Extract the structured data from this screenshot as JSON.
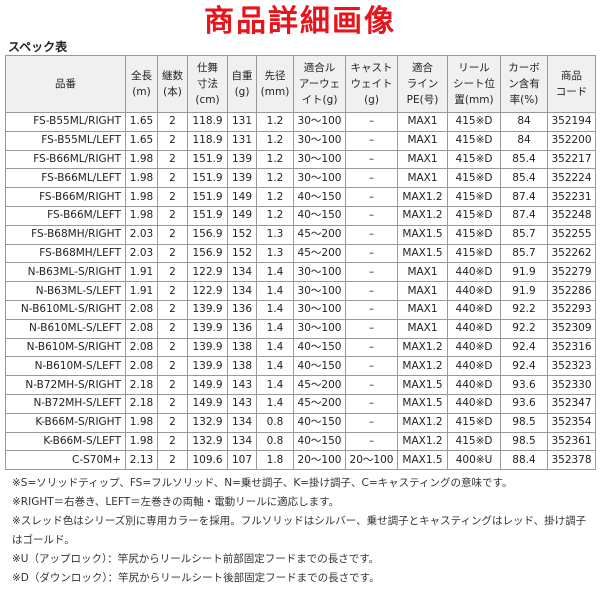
{
  "header": {
    "title": "商品詳細画像",
    "subtitle": "スペック表"
  },
  "table": {
    "columns": [
      [
        "品番"
      ],
      [
        "全長",
        "(m)"
      ],
      [
        "継数",
        "(本)"
      ],
      [
        "仕舞",
        "寸法",
        "(cm)"
      ],
      [
        "自重",
        "(g)"
      ],
      [
        "先径",
        "(mm)"
      ],
      [
        "適合ル",
        "アーウェ",
        "イト(g)"
      ],
      [
        "キャスト",
        "ウェイト",
        "(g)"
      ],
      [
        "適合",
        "ライン",
        "PE(号)"
      ],
      [
        "リール",
        "シート位",
        "置(mm)"
      ],
      [
        "カーボ",
        "ン含有",
        "率(%)"
      ],
      [
        "商品",
        "コード"
      ]
    ],
    "rows": [
      [
        "FS-B55ML/RIGHT",
        "1.65",
        "2",
        "118.9",
        "131",
        "1.2",
        "30～100",
        "–",
        "MAX1",
        "415※D",
        "84",
        "352194"
      ],
      [
        "FS-B55ML/LEFT",
        "1.65",
        "2",
        "118.9",
        "131",
        "1.2",
        "30～100",
        "–",
        "MAX1",
        "415※D",
        "84",
        "352200"
      ],
      [
        "FS-B66ML/RIGHT",
        "1.98",
        "2",
        "151.9",
        "139",
        "1.2",
        "30～100",
        "–",
        "MAX1",
        "415※D",
        "85.4",
        "352217"
      ],
      [
        "FS-B66ML/LEFT",
        "1.98",
        "2",
        "151.9",
        "139",
        "1.2",
        "30～100",
        "–",
        "MAX1",
        "415※D",
        "85.4",
        "352224"
      ],
      [
        "FS-B66M/RIGHT",
        "1.98",
        "2",
        "151.9",
        "149",
        "1.2",
        "40～150",
        "–",
        "MAX1.2",
        "415※D",
        "87.4",
        "352231"
      ],
      [
        "FS-B66M/LEFT",
        "1.98",
        "2",
        "151.9",
        "149",
        "1.2",
        "40～150",
        "–",
        "MAX1.2",
        "415※D",
        "87.4",
        "352248"
      ],
      [
        "FS-B68MH/RIGHT",
        "2.03",
        "2",
        "156.9",
        "152",
        "1.3",
        "45～200",
        "–",
        "MAX1.5",
        "415※D",
        "85.7",
        "352255"
      ],
      [
        "FS-B68MH/LEFT",
        "2.03",
        "2",
        "156.9",
        "152",
        "1.3",
        "45～200",
        "–",
        "MAX1.5",
        "415※D",
        "85.7",
        "352262"
      ],
      [
        "N-B63ML-S/RIGHT",
        "1.91",
        "2",
        "122.9",
        "134",
        "1.4",
        "30～100",
        "–",
        "MAX1",
        "440※D",
        "91.9",
        "352279"
      ],
      [
        "N-B63ML-S/LEFT",
        "1.91",
        "2",
        "122.9",
        "134",
        "1.4",
        "30～100",
        "–",
        "MAX1",
        "440※D",
        "91.9",
        "352286"
      ],
      [
        "N-B610ML-S/RIGHT",
        "2.08",
        "2",
        "139.9",
        "136",
        "1.4",
        "30～100",
        "–",
        "MAX1",
        "440※D",
        "92.2",
        "352293"
      ],
      [
        "N-B610ML-S/LEFT",
        "2.08",
        "2",
        "139.9",
        "136",
        "1.4",
        "30～100",
        "–",
        "MAX1",
        "440※D",
        "92.2",
        "352309"
      ],
      [
        "N-B610M-S/RIGHT",
        "2.08",
        "2",
        "139.9",
        "138",
        "1.4",
        "40～150",
        "–",
        "MAX1.2",
        "440※D",
        "92.4",
        "352316"
      ],
      [
        "N-B610M-S/LEFT",
        "2.08",
        "2",
        "139.9",
        "138",
        "1.4",
        "40～150",
        "–",
        "MAX1.2",
        "440※D",
        "92.4",
        "352323"
      ],
      [
        "N-B72MH-S/RIGHT",
        "2.18",
        "2",
        "149.9",
        "143",
        "1.4",
        "45～200",
        "–",
        "MAX1.5",
        "440※D",
        "93.6",
        "352330"
      ],
      [
        "N-B72MH-S/LEFT",
        "2.18",
        "2",
        "149.9",
        "143",
        "1.4",
        "45～200",
        "–",
        "MAX1.5",
        "440※D",
        "93.6",
        "352347"
      ],
      [
        "K-B66M-S/RIGHT",
        "1.98",
        "2",
        "132.9",
        "134",
        "0.8",
        "40～150",
        "–",
        "MAX1.2",
        "415※D",
        "98.5",
        "352354"
      ],
      [
        "K-B66M-S/LEFT",
        "1.98",
        "2",
        "132.9",
        "134",
        "0.8",
        "40～150",
        "–",
        "MAX1.2",
        "415※D",
        "98.5",
        "352361"
      ],
      [
        "C-S70M+",
        "2.13",
        "2",
        "109.6",
        "107",
        "1.8",
        "20～100",
        "20～100",
        "MAX1.5",
        "400※U",
        "88.4",
        "352378"
      ]
    ]
  },
  "notes": [
    "※S=ソリッドティップ、FS=フルソリッド、N=乗せ調子、K=掛け調子、C=キャスティングの意味です。",
    "※RIGHT＝右巻き、LEFT＝左巻きの両軸・電動リールに適応します。",
    "※スレッド色はシリーズ別に専用カラーを採用。フルソリッドはシルバー、乗せ調子とキャスティングはレッド、掛け調子はゴールド。",
    "※U（アップロック）：竿尻からリールシート前部固定フードまでの長さです。",
    "※D（ダウンロック）：竿尻からリールシート後部固定フードまでの長さです。"
  ]
}
